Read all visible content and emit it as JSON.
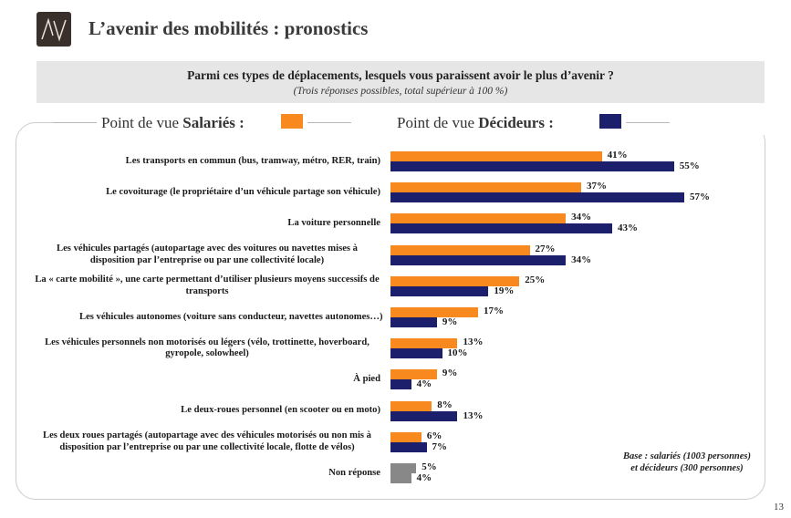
{
  "header": {
    "title": "L’avenir des mobilités : pronostics"
  },
  "question": {
    "text": "Parmi ces types de déplacements, lesquels vous paraissent avoir le plus d’avenir ?",
    "note": "(Trois réponses possibles, total supérieur à 100 %)"
  },
  "legend": {
    "salaries_prefix": "Point de vue ",
    "salaries_bold": "Salariés :",
    "decideurs_prefix": "Point de vue ",
    "decideurs_bold": "Décideurs :"
  },
  "chart_data": {
    "type": "bar",
    "orientation": "horizontal",
    "categories": [
      "Les transports en commun (bus, tramway, métro, RER, train)",
      "Le covoiturage (le propriétaire d’un véhicule partage son véhicule)",
      "La voiture personnelle",
      "Les véhicules partagés (autopartage avec des voitures ou navettes mises à disposition par l’entreprise ou par une collectivité locale)",
      "La « carte mobilité », une carte permettant d’utiliser plusieurs moyens successifs de transports",
      "Les véhicules autonomes (voiture sans conducteur, navettes autonomes…)",
      "Les véhicules personnels non motorisés ou légers (vélo, trottinette, hoverboard, gyropole, solowheel)",
      "À pied",
      "Le deux-roues personnel (en scooter ou en moto)",
      "Les deux roues partagés (autopartage avec des véhicules motorisés ou non mis à disposition par l’entreprise ou par une collectivité locale, flotte de vélos)",
      "Non réponse"
    ],
    "series": [
      {
        "name": "Salariés",
        "values": [
          41,
          37,
          34,
          27,
          25,
          17,
          13,
          9,
          8,
          6,
          5
        ],
        "labels": [
          "41%",
          "37%",
          "34%",
          "27%",
          "25%",
          "17%",
          "13%",
          "9%",
          "8%",
          "6%",
          "5%"
        ]
      },
      {
        "name": "Décideurs",
        "values": [
          55,
          57,
          43,
          34,
          19,
          9,
          10,
          4,
          13,
          7,
          4
        ],
        "labels": [
          "55%",
          "57%",
          "43%",
          "34%",
          "19%",
          "9%",
          "10%",
          "4%",
          "13%",
          "7%",
          "4%"
        ]
      }
    ],
    "colors": {
      "salaries": "#f7891f",
      "decideurs": "#1c1f6c",
      "non_reponse": "#888888"
    }
  },
  "footer": {
    "base_line1": "Base : salariés (1003 personnes)",
    "base_line2": "et décideurs (300 personnes)",
    "page_number": "13"
  }
}
